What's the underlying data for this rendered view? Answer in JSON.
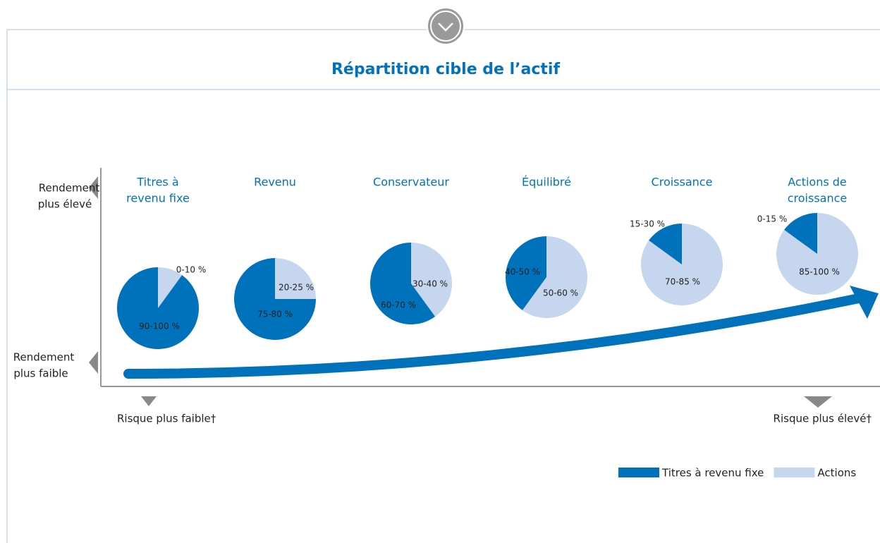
{
  "chart_data": {
    "type": "pie",
    "title": "Répartition cible de l’actif",
    "y_axis_labels": {
      "high": [
        "Rendement",
        "plus élevé"
      ],
      "low": [
        "Rendement",
        "plus faible"
      ]
    },
    "x_axis_labels": {
      "low": "Risque plus faible†",
      "high": "Risque plus élevé†"
    },
    "series": [
      {
        "name": "Titres à revenu fixe",
        "color": "#0072bc"
      },
      {
        "name": "Actions",
        "color": "#c5d6ee"
      }
    ],
    "pies": [
      {
        "label": [
          "Titres à",
          "revenu fixe"
        ],
        "values": [
          90,
          10
        ],
        "value_labels": [
          "90-100 %",
          "0-10 %"
        ]
      },
      {
        "label": [
          "Revenu"
        ],
        "values": [
          75,
          25
        ],
        "value_labels": [
          "75-80 %",
          "20-25 %"
        ]
      },
      {
        "label": [
          "Conservateur"
        ],
        "values": [
          60,
          40
        ],
        "value_labels": [
          "60-70 %",
          "30-40 %"
        ]
      },
      {
        "label": [
          "Équilibré"
        ],
        "values": [
          40,
          60
        ],
        "value_labels": [
          "40-50 %",
          "50-60 %"
        ]
      },
      {
        "label": [
          "Croissance"
        ],
        "values": [
          15,
          85
        ],
        "value_labels": [
          "15-30 %",
          "70-85 %"
        ]
      },
      {
        "label": [
          "Actions de",
          "croissance"
        ],
        "values": [
          15,
          85
        ],
        "value_labels": [
          "0-15 %",
          "85-100 %"
        ]
      }
    ]
  }
}
